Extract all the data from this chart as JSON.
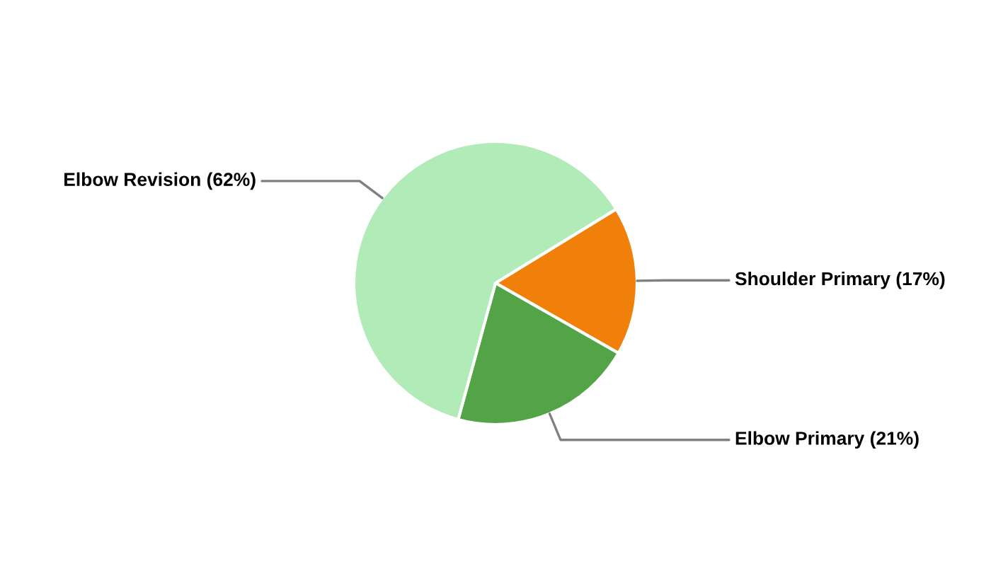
{
  "chart_data": {
    "type": "pie",
    "categories": [
      "Shoulder Primary (17%)",
      "Elbow Primary (21%)",
      "Elbow Revision (62%)"
    ],
    "values": [
      17,
      21,
      62
    ],
    "colors": [
      "#f0800a",
      "#52a447",
      "#b0ebb8"
    ]
  }
}
